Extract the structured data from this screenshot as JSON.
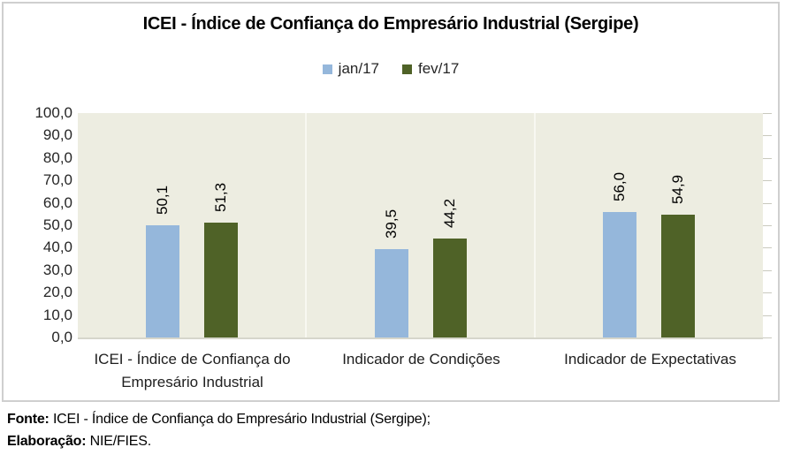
{
  "title": "ICEI - Índice de Confiança do Empresário Industrial (Sergipe)",
  "legend": {
    "items": [
      {
        "label": "jan/17",
        "color": "#95B7DB"
      },
      {
        "label": "fev/17",
        "color": "#4F6227"
      }
    ]
  },
  "chart_data": {
    "type": "bar",
    "title": "ICEI - Índice de Confiança do Empresário Industrial (Sergipe)",
    "categories": [
      "ICEI - Índice de Confiança do Empresário Industrial",
      "Indicador de Condições",
      "Indicador de Expectativas"
    ],
    "series": [
      {
        "name": "jan/17",
        "color": "#95B7DB",
        "values": [
          50.1,
          39.5,
          56.0
        ],
        "labels": [
          "50,1",
          "39,5",
          "56,0"
        ]
      },
      {
        "name": "fev/17",
        "color": "#4F6227",
        "values": [
          51.3,
          44.2,
          54.9
        ],
        "labels": [
          "51,3",
          "44,2",
          "54,9"
        ]
      }
    ],
    "ylim": [
      0,
      100
    ],
    "ytick_step": 10,
    "ytick_labels": [
      "100,0",
      "90,0",
      "80,0",
      "70,0",
      "60,0",
      "50,0",
      "40,0",
      "30,0",
      "20,0",
      "10,0",
      "0,0"
    ],
    "legend_position": "top",
    "plot_background": "#EDEDE1",
    "grid": "vertical category separators, right-edge tick marks, no horizontal gridlines",
    "value_label_rotation": "90deg counterclockwise, above bars"
  },
  "footer": {
    "fonte_label": "Fonte:",
    "fonte_text": "ICEI - Índice de Confiança do Empresário Industrial (Sergipe);",
    "elaboracao_label": "Elaboração:",
    "elaboracao_text": "NIE/FIES."
  }
}
